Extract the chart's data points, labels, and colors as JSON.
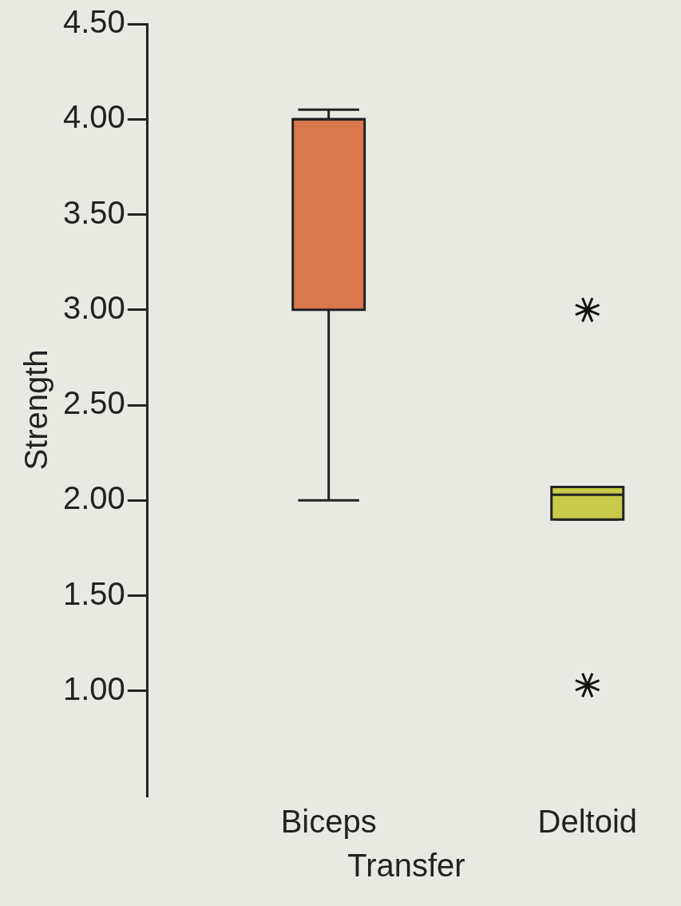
{
  "chart_data": {
    "type": "box",
    "xlabel": "Transfer",
    "ylabel": "Strength",
    "categories": [
      "Biceps",
      "Deltoid"
    ],
    "colors": [
      "#d8784c",
      "#c9c94a"
    ],
    "boxes": [
      {
        "low": 2.0,
        "q1": 3.0,
        "median": 4.0,
        "q3": 4.0,
        "high": 4.05
      },
      {
        "low": 1.9,
        "q1": 1.9,
        "median": 2.03,
        "q3": 2.07,
        "high": 2.07,
        "outliers": [
          3.0,
          1.03
        ]
      }
    ],
    "ylim": [
      0.45,
      4.5
    ],
    "yticks": [
      {
        "value": 1,
        "label": "1.00"
      },
      {
        "value": 1.5,
        "label": "1.50"
      },
      {
        "value": 2,
        "label": "2.00"
      },
      {
        "value": 2.5,
        "label": "2.50"
      },
      {
        "value": 3,
        "label": "3.00"
      },
      {
        "value": 3.5,
        "label": "3.50"
      },
      {
        "value": 4,
        "label": "4.00"
      },
      {
        "value": 4.5,
        "label": "4.50"
      }
    ],
    "grid": false,
    "legend": false,
    "marker": "star"
  }
}
